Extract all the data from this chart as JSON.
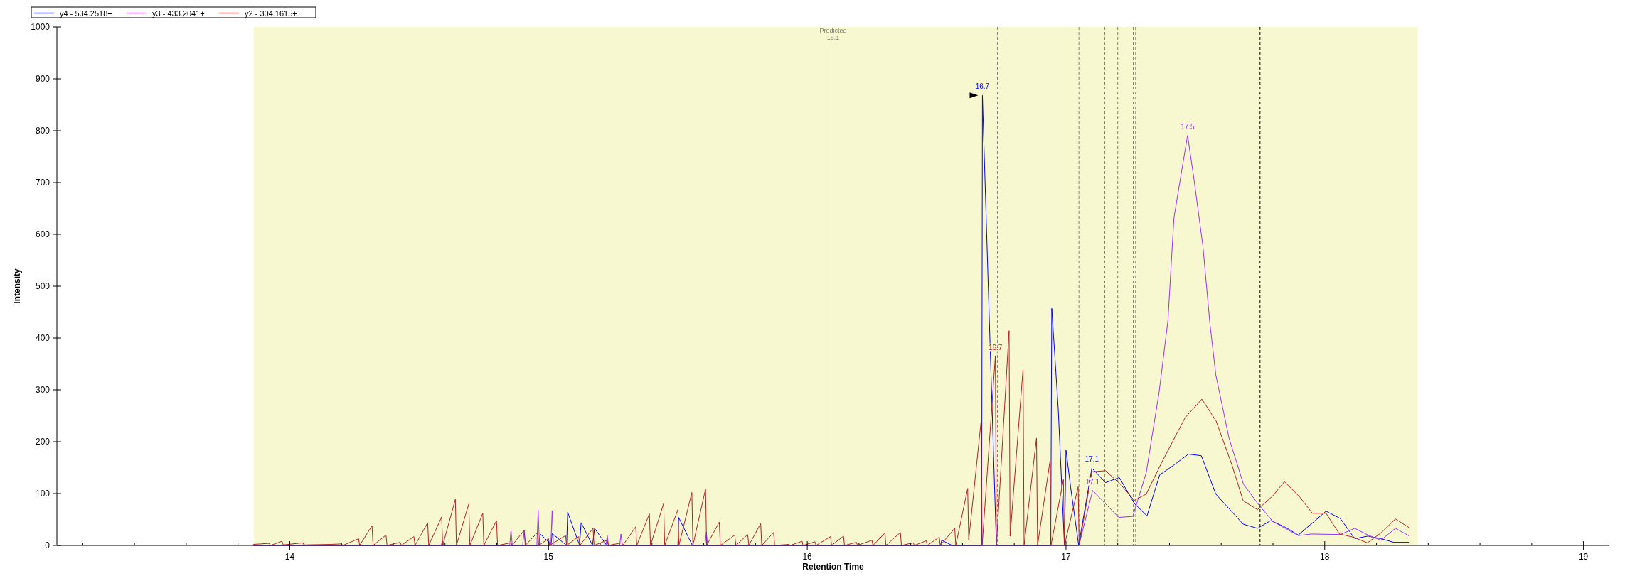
{
  "chart_data": {
    "type": "line",
    "xlabel": "Retention Time",
    "ylabel": "Intensity",
    "xlim": [
      13.1,
      19.1
    ],
    "ylim": [
      0,
      1000
    ],
    "xticks": [
      {
        "value": 13.2,
        "label": null
      },
      {
        "value": 13.4,
        "label": null
      },
      {
        "value": 13.6,
        "label": null
      },
      {
        "value": 13.8,
        "label": null
      },
      14,
      {
        "value": 14.2,
        "label": null
      },
      {
        "value": 14.4,
        "label": null
      },
      {
        "value": 14.6,
        "label": null
      },
      {
        "value": 14.8,
        "label": null
      },
      15,
      {
        "value": 15.2,
        "label": null
      },
      {
        "value": 15.4,
        "label": null
      },
      {
        "value": 15.6,
        "label": null
      },
      {
        "value": 15.8,
        "label": null
      },
      16,
      {
        "value": 16.2,
        "label": null
      },
      {
        "value": 16.4,
        "label": null
      },
      {
        "value": 16.6,
        "label": null
      },
      {
        "value": 16.8,
        "label": null
      },
      17,
      {
        "value": 17.2,
        "label": null
      },
      {
        "value": 17.4,
        "label": null
      },
      {
        "value": 17.6,
        "label": null
      },
      {
        "value": 17.8,
        "label": null
      },
      18,
      {
        "value": 18.2,
        "label": null
      },
      {
        "value": 18.4,
        "label": null
      },
      {
        "value": 18.6,
        "label": null
      },
      {
        "value": 18.8,
        "label": null
      },
      19
    ],
    "yticks": [
      0,
      100,
      200,
      300,
      400,
      500,
      600,
      700,
      800,
      900,
      1000
    ],
    "grid": false,
    "legend": "top left",
    "marker": "none",
    "line_style": "solid",
    "bands": [
      {
        "axis": "x",
        "from": 13.86,
        "to": 18.36,
        "color": "#f8f8d0"
      }
    ],
    "ref_lines": [
      {
        "axis": "x",
        "value": 16.1,
        "label": "Predicted 16.1",
        "color": "#808080",
        "line_style": "solid"
      },
      {
        "axis": "x",
        "value": 16.735,
        "color": "#808080",
        "line_style": "dashed"
      },
      {
        "axis": "x",
        "value": 17.05,
        "color": "#808080",
        "line_style": "dashed"
      },
      {
        "axis": "x",
        "value": 17.15,
        "color": "#808080",
        "line_style": "dashed"
      },
      {
        "axis": "x",
        "value": 17.2,
        "color": "#808080",
        "line_style": "dashed"
      },
      {
        "axis": "x",
        "value": 17.26,
        "color": "#808080",
        "line_style": "dashed"
      },
      {
        "axis": "x",
        "value": 17.27,
        "color": "#000000",
        "line_style": "dashed"
      },
      {
        "axis": "x",
        "value": 17.75,
        "color": "#000000",
        "line_style": "dashed"
      }
    ],
    "annotations": [
      {
        "text": "16.7",
        "x": 16.677,
        "y": 868
      },
      {
        "text": "16.7",
        "x": 16.727,
        "y": 365
      },
      {
        "text": "17.1",
        "x": 17.1,
        "y": 149
      },
      {
        "text": "17.1",
        "x": 17.103,
        "y": 106
      },
      {
        "text": "17.5",
        "x": 17.47,
        "y": 791
      }
    ],
    "series": [
      {
        "name": "y4 - 534.2518+",
        "color": "#0000ff",
        "x": [
          13.86,
          14.963,
          14.968,
          15.01,
          15.014,
          15.07,
          15.074,
          15.12,
          15.126,
          15.17,
          15.178,
          15.225,
          15.5,
          15.503,
          15.556,
          16.515,
          16.52,
          16.56,
          16.674,
          16.677,
          16.7,
          16.731,
          16.941,
          16.945,
          16.97,
          16.994,
          17.0,
          17.018,
          17.049,
          17.1,
          17.153,
          17.206,
          17.264,
          17.313,
          17.362,
          17.417,
          17.473,
          17.523,
          17.579,
          17.63,
          17.685,
          17.74,
          17.792,
          17.848,
          17.898,
          18.005,
          18.06,
          18.116,
          18.167,
          18.217,
          18.267,
          18.324
        ],
        "values": [
          0,
          0,
          22,
          2,
          23,
          0,
          64,
          0,
          44,
          0,
          33,
          0,
          0,
          54,
          0,
          0,
          10,
          0,
          0,
          868,
          493,
          0,
          0,
          457,
          263,
          0,
          184,
          112,
          0,
          149,
          121,
          131,
          81,
          57,
          136,
          155,
          176,
          173,
          99,
          71,
          41,
          33,
          48,
          35,
          20,
          66,
          52,
          13,
          18,
          13,
          6,
          6
        ]
      },
      {
        "name": "y3 - 433.2041+",
        "color": "#9b30ff",
        "x": [
          13.86,
          14.585,
          14.59,
          14.595,
          14.85,
          14.855,
          14.86,
          14.9,
          14.906,
          14.912,
          14.955,
          14.96,
          14.965,
          15.009,
          15.014,
          15.019,
          15.222,
          15.227,
          15.232,
          15.275,
          15.28,
          15.285,
          15.605,
          15.61,
          15.615,
          17.05,
          17.103,
          17.153,
          17.204,
          17.258,
          17.31,
          17.36,
          17.394,
          17.417,
          17.445,
          17.47,
          17.495,
          17.529,
          17.556,
          17.579,
          17.63,
          17.686,
          17.747,
          17.8,
          17.898,
          17.948,
          18.06,
          18.116,
          18.167,
          18.217,
          18.273,
          18.324
        ],
        "values": [
          0,
          0,
          8,
          0,
          0,
          30,
          0,
          0,
          28,
          0,
          0,
          68,
          0,
          0,
          67,
          0,
          0,
          19,
          0,
          0,
          22,
          0,
          0,
          26,
          0,
          0,
          106,
          80,
          54,
          56,
          140,
          296,
          434,
          631,
          716,
          791,
          705,
          578,
          429,
          329,
          207,
          118,
          77,
          46,
          19,
          22,
          21,
          33,
          20,
          10,
          33,
          19
        ]
      },
      {
        "name": "y2 - 304.1615+",
        "color": "#b22222",
        "x": [
          13.86,
          13.92,
          13.925,
          13.97,
          13.975,
          14.05,
          14.055,
          14.16,
          14.2,
          14.205,
          14.266,
          14.27,
          14.318,
          14.322,
          14.372,
          14.376,
          14.427,
          14.431,
          14.48,
          14.484,
          14.533,
          14.537,
          14.587,
          14.591,
          14.64,
          14.644,
          14.692,
          14.696,
          14.746,
          14.75,
          14.799,
          14.803,
          14.855,
          14.859,
          14.906,
          14.91,
          14.958,
          14.962,
          15.0,
          15.004,
          15.066,
          15.07,
          15.117,
          15.121,
          15.172,
          15.176,
          15.227,
          15.231,
          15.283,
          15.287,
          15.337,
          15.341,
          15.39,
          15.394,
          15.445,
          15.449,
          15.5,
          15.504,
          15.554,
          15.558,
          15.607,
          15.611,
          15.66,
          15.664,
          15.72,
          15.724,
          15.77,
          15.774,
          15.82,
          15.824,
          15.87,
          15.874,
          15.93,
          15.934,
          15.98,
          15.984,
          16.03,
          16.034,
          16.09,
          16.094,
          16.14,
          16.144,
          16.19,
          16.194,
          16.25,
          16.254,
          16.3,
          16.304,
          16.36,
          16.364,
          16.41,
          16.414,
          16.46,
          16.464,
          16.51,
          16.514,
          16.57,
          16.574,
          16.62,
          16.624,
          16.672,
          16.676,
          16.727,
          16.731,
          16.78,
          16.784,
          16.834,
          16.838,
          16.886,
          16.89,
          16.938,
          16.942,
          16.99,
          16.994,
          17.047,
          17.051,
          17.1,
          17.153,
          17.21,
          17.264,
          17.31,
          17.37,
          17.46,
          17.525,
          17.58,
          17.64,
          17.685,
          17.74,
          17.8,
          17.844,
          17.904,
          17.952,
          18.005,
          18.057,
          18.11,
          18.165,
          18.217,
          18.273,
          18.324
        ],
        "values": [
          2,
          4,
          0,
          8,
          1,
          5,
          1,
          2,
          3,
          0,
          13,
          0,
          38,
          0,
          20,
          0,
          6,
          0,
          17,
          0,
          44,
          0,
          55,
          0,
          89,
          0,
          80,
          0,
          62,
          0,
          48,
          0,
          5,
          0,
          29,
          0,
          25,
          0,
          13,
          0,
          19,
          0,
          17,
          0,
          33,
          0,
          10,
          0,
          5,
          0,
          36,
          0,
          61,
          0,
          81,
          0,
          69,
          0,
          102,
          0,
          109,
          0,
          45,
          0,
          20,
          0,
          21,
          0,
          42,
          0,
          25,
          0,
          2,
          0,
          8,
          0,
          7,
          0,
          17,
          0,
          18,
          0,
          6,
          0,
          10,
          0,
          24,
          0,
          25,
          0,
          5,
          0,
          9,
          0,
          16,
          0,
          33,
          0,
          110,
          10,
          240,
          0,
          365,
          0,
          414,
          18,
          340,
          0,
          207,
          0,
          162,
          0,
          127,
          0,
          113,
          0,
          142,
          144,
          118,
          87,
          99,
          160,
          246,
          282,
          240,
          157,
          86,
          69,
          96,
          123,
          93,
          62,
          62,
          22,
          16,
          5,
          24,
          51,
          35
        ]
      }
    ]
  }
}
